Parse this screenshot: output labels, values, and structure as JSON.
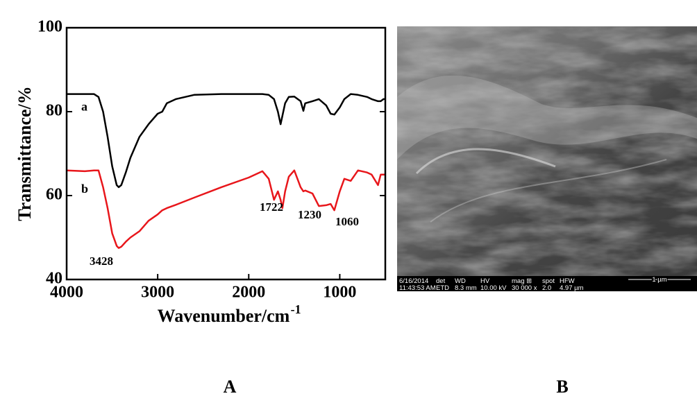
{
  "chart_data": {
    "type": "line",
    "ylabel": "Transmittance/%",
    "xlabel": {
      "text": "Wavenumber/cm",
      "superscript": "-1"
    },
    "x": [
      4000,
      3800,
      3700,
      3650,
      3600,
      3550,
      3500,
      3450,
      3428,
      3400,
      3350,
      3300,
      3200,
      3100,
      3000,
      2950,
      2900,
      2800,
      2600,
      2300,
      2000,
      1850,
      1780,
      1722,
      1680,
      1650,
      1630,
      1600,
      1560,
      1500,
      1430,
      1400,
      1380,
      1300,
      1230,
      1150,
      1100,
      1060,
      1000,
      950,
      880,
      800,
      700,
      650,
      580,
      550,
      520,
      500
    ],
    "series": [
      {
        "name": "a",
        "color": "#000000",
        "values": [
          84.2,
          84.2,
          84.2,
          83.5,
          80,
          74,
          67,
          62.5,
          62,
          62.5,
          65.5,
          69,
          74,
          77,
          79.5,
          80,
          82,
          83,
          84,
          84.2,
          84.2,
          84.2,
          84,
          83,
          80,
          77,
          79,
          82,
          83.5,
          83.6,
          82.5,
          80.2,
          82,
          82.5,
          83,
          81.5,
          79.5,
          79.3,
          81,
          83,
          84.2,
          84,
          83.5,
          83,
          82.5,
          82.5,
          83,
          83
        ]
      },
      {
        "name": "b",
        "color": "#e8161b",
        "values": [
          66,
          65.8,
          66,
          66,
          62,
          57,
          51,
          48,
          47.5,
          47.8,
          49,
          50,
          51.5,
          54,
          55.5,
          56.5,
          57,
          57.8,
          59.5,
          62,
          64.3,
          65.8,
          64,
          59,
          61,
          59,
          57,
          61,
          64.5,
          66,
          62,
          61,
          61.2,
          60.5,
          57.5,
          57.7,
          58,
          56.5,
          61,
          64,
          63.5,
          66,
          65.5,
          65,
          62.5,
          65,
          65,
          65
        ]
      }
    ],
    "annotations": [
      "3428",
      "1722",
      "1230",
      "1060"
    ],
    "xlim": [
      4000,
      500
    ],
    "xticks": [
      4000,
      3000,
      2000,
      1000
    ],
    "ylim": [
      40,
      100
    ],
    "yticks": [
      40,
      60,
      80,
      100
    ]
  },
  "sem_image": {
    "info": [
      [
        "6/16/2014",
        "11:43:53 AM"
      ],
      [
        "det",
        "ETD"
      ],
      [
        "WD",
        "8.3 mm"
      ],
      [
        "HV",
        "10.00 kV"
      ],
      [
        "mag ⊞",
        "30 000 x"
      ],
      [
        "spot",
        "2.0"
      ],
      [
        "HFW",
        "4.97 µm"
      ]
    ],
    "scale_bar": "1 µm"
  },
  "panel_labels": [
    "A",
    "B"
  ]
}
